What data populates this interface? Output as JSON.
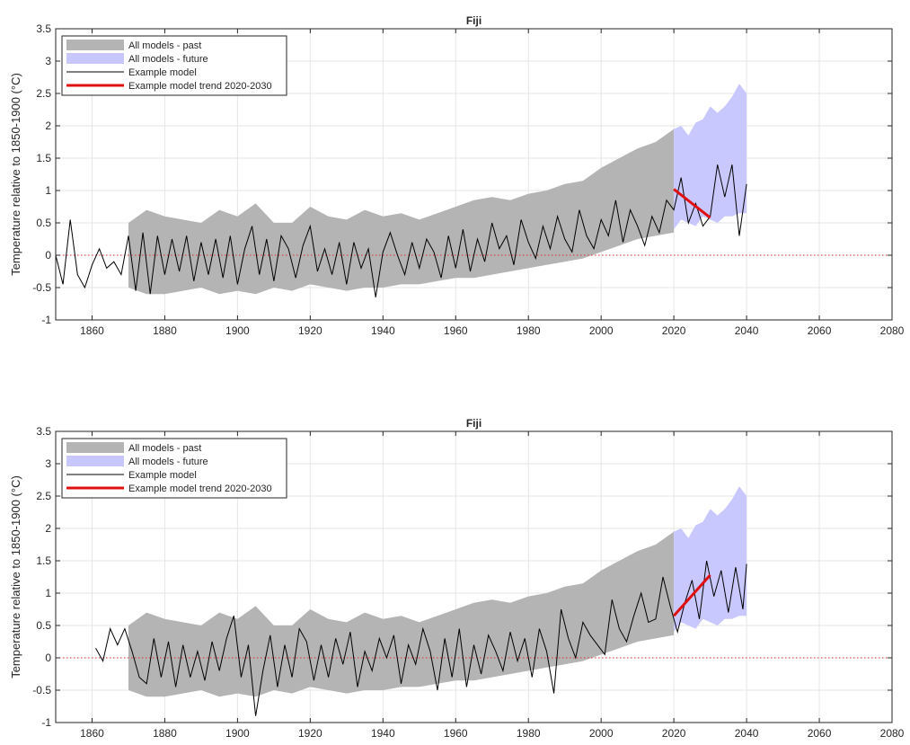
{
  "chart_data": [
    {
      "type": "line",
      "title": "Fiji",
      "xlabel": "",
      "ylabel": "Temperature relative to 1850-1900 (°C)",
      "xlim": [
        1850,
        2080
      ],
      "ylim": [
        -1,
        3.5
      ],
      "xticks": [
        1860,
        1880,
        1900,
        1920,
        1940,
        1960,
        1980,
        2000,
        2020,
        2040,
        2060,
        2080
      ],
      "yticks": [
        -1,
        -0.5,
        0,
        0.5,
        1,
        1.5,
        2,
        2.5,
        3,
        3.5
      ],
      "grid": true,
      "legend_position": "top-left",
      "reference_line": {
        "y": 0,
        "color": "#e03030",
        "style": "dotted"
      },
      "series": [
        {
          "name": "All models - past",
          "kind": "band",
          "color": "#b4b4b4",
          "x": [
            1870,
            1875,
            1880,
            1885,
            1890,
            1895,
            1900,
            1905,
            1910,
            1915,
            1920,
            1925,
            1930,
            1935,
            1940,
            1945,
            1950,
            1955,
            1960,
            1965,
            1970,
            1975,
            1980,
            1985,
            1990,
            1995,
            2000,
            2005,
            2010,
            2015,
            2020
          ],
          "upper": [
            0.5,
            0.7,
            0.6,
            0.55,
            0.5,
            0.7,
            0.6,
            0.8,
            0.5,
            0.5,
            0.75,
            0.6,
            0.55,
            0.7,
            0.6,
            0.65,
            0.55,
            0.65,
            0.75,
            0.85,
            0.9,
            0.85,
            0.95,
            1.0,
            1.1,
            1.15,
            1.35,
            1.5,
            1.65,
            1.75,
            1.95
          ],
          "lower": [
            -0.5,
            -0.6,
            -0.6,
            -0.55,
            -0.5,
            -0.6,
            -0.55,
            -0.6,
            -0.5,
            -0.55,
            -0.45,
            -0.5,
            -0.55,
            -0.5,
            -0.5,
            -0.45,
            -0.45,
            -0.4,
            -0.35,
            -0.35,
            -0.3,
            -0.25,
            -0.2,
            -0.15,
            -0.1,
            -0.05,
            0.05,
            0.15,
            0.25,
            0.3,
            0.35
          ]
        },
        {
          "name": "All models - future",
          "kind": "band",
          "color": "#c8c8ff",
          "x": [
            2020,
            2022,
            2024,
            2026,
            2028,
            2030,
            2032,
            2034,
            2036,
            2038,
            2040
          ],
          "upper": [
            1.95,
            2.0,
            1.85,
            2.05,
            2.1,
            2.3,
            2.2,
            2.3,
            2.45,
            2.65,
            2.5
          ],
          "lower": [
            0.4,
            0.55,
            0.5,
            0.45,
            0.6,
            0.55,
            0.5,
            0.6,
            0.6,
            0.65,
            0.65
          ]
        },
        {
          "name": "Example model",
          "kind": "line",
          "color": "#000000",
          "x": [
            1850,
            1852,
            1854,
            1856,
            1858,
            1860,
            1862,
            1864,
            1866,
            1868,
            1870,
            1872,
            1874,
            1876,
            1878,
            1880,
            1882,
            1884,
            1886,
            1888,
            1890,
            1892,
            1894,
            1896,
            1898,
            1900,
            1902,
            1904,
            1906,
            1908,
            1910,
            1912,
            1914,
            1916,
            1918,
            1920,
            1922,
            1924,
            1926,
            1928,
            1930,
            1932,
            1934,
            1936,
            1938,
            1940,
            1942,
            1944,
            1946,
            1948,
            1950,
            1952,
            1954,
            1956,
            1958,
            1960,
            1962,
            1964,
            1966,
            1968,
            1970,
            1972,
            1974,
            1976,
            1978,
            1980,
            1982,
            1984,
            1986,
            1988,
            1990,
            1992,
            1994,
            1996,
            1998,
            2000,
            2002,
            2004,
            2006,
            2008,
            2010,
            2012,
            2014,
            2016,
            2018,
            2020,
            2022,
            2024,
            2026,
            2028,
            2030,
            2032,
            2034,
            2036,
            2038,
            2040
          ],
          "y": [
            0.0,
            -0.45,
            0.55,
            -0.3,
            -0.5,
            -0.15,
            0.1,
            -0.2,
            -0.1,
            -0.3,
            0.3,
            -0.55,
            0.35,
            -0.6,
            0.3,
            -0.3,
            0.25,
            -0.25,
            0.3,
            -0.4,
            0.2,
            -0.3,
            0.25,
            -0.35,
            0.3,
            -0.45,
            0.1,
            0.45,
            -0.3,
            0.25,
            -0.4,
            0.3,
            0.1,
            -0.35,
            0.15,
            0.45,
            -0.25,
            0.1,
            -0.3,
            0.2,
            -0.45,
            0.2,
            -0.2,
            0.1,
            -0.65,
            0.05,
            0.35,
            0.0,
            -0.3,
            0.2,
            -0.2,
            0.25,
            0.05,
            -0.35,
            0.3,
            -0.2,
            0.4,
            -0.25,
            0.25,
            -0.1,
            0.5,
            0.1,
            0.3,
            -0.15,
            0.55,
            0.2,
            -0.05,
            0.45,
            0.1,
            0.6,
            0.25,
            0.05,
            0.7,
            0.3,
            0.1,
            0.55,
            0.3,
            0.85,
            0.2,
            0.7,
            0.45,
            0.15,
            0.6,
            0.35,
            0.85,
            0.7,
            1.2,
            0.5,
            0.8,
            0.45,
            0.6,
            1.4,
            0.9,
            1.4,
            0.3,
            1.1
          ]
        },
        {
          "name": "Example model trend 2020-2030",
          "kind": "trend",
          "color": "#e01010",
          "x": [
            2020,
            2030
          ],
          "y": [
            1.02,
            0.58
          ]
        }
      ]
    },
    {
      "type": "line",
      "title": "Fiji",
      "xlabel": "",
      "ylabel": "Temperature relative to 1850-1900 (°C)",
      "xlim": [
        1850,
        2080
      ],
      "ylim": [
        -1,
        3.5
      ],
      "xticks": [
        1860,
        1880,
        1900,
        1920,
        1940,
        1960,
        1980,
        2000,
        2020,
        2040,
        2060,
        2080
      ],
      "yticks": [
        -1,
        -0.5,
        0,
        0.5,
        1,
        1.5,
        2,
        2.5,
        3,
        3.5
      ],
      "grid": true,
      "legend_position": "top-left",
      "reference_line": {
        "y": 0,
        "color": "#e03030",
        "style": "dotted"
      },
      "series": [
        {
          "name": "All models - past",
          "kind": "band",
          "color": "#b4b4b4",
          "x": [
            1870,
            1875,
            1880,
            1885,
            1890,
            1895,
            1900,
            1905,
            1910,
            1915,
            1920,
            1925,
            1930,
            1935,
            1940,
            1945,
            1950,
            1955,
            1960,
            1965,
            1970,
            1975,
            1980,
            1985,
            1990,
            1995,
            2000,
            2005,
            2010,
            2015,
            2020
          ],
          "upper": [
            0.5,
            0.7,
            0.6,
            0.55,
            0.5,
            0.7,
            0.6,
            0.8,
            0.5,
            0.5,
            0.75,
            0.6,
            0.55,
            0.7,
            0.6,
            0.65,
            0.55,
            0.65,
            0.75,
            0.85,
            0.9,
            0.85,
            0.95,
            1.0,
            1.1,
            1.15,
            1.35,
            1.5,
            1.65,
            1.75,
            1.95
          ],
          "lower": [
            -0.5,
            -0.6,
            -0.6,
            -0.55,
            -0.5,
            -0.6,
            -0.55,
            -0.6,
            -0.5,
            -0.55,
            -0.45,
            -0.5,
            -0.55,
            -0.5,
            -0.5,
            -0.45,
            -0.45,
            -0.4,
            -0.35,
            -0.35,
            -0.3,
            -0.25,
            -0.2,
            -0.15,
            -0.1,
            -0.05,
            0.05,
            0.15,
            0.25,
            0.3,
            0.35
          ]
        },
        {
          "name": "All models - future",
          "kind": "band",
          "color": "#c8c8ff",
          "x": [
            2020,
            2022,
            2024,
            2026,
            2028,
            2030,
            2032,
            2034,
            2036,
            2038,
            2040
          ],
          "upper": [
            1.95,
            2.0,
            1.85,
            2.05,
            2.1,
            2.3,
            2.2,
            2.3,
            2.45,
            2.65,
            2.5
          ],
          "lower": [
            0.4,
            0.55,
            0.5,
            0.45,
            0.6,
            0.55,
            0.5,
            0.6,
            0.6,
            0.65,
            0.65
          ]
        },
        {
          "name": "Example model",
          "kind": "line",
          "color": "#000000",
          "x": [
            1861,
            1863,
            1865,
            1867,
            1869,
            1871,
            1873,
            1875,
            1877,
            1879,
            1881,
            1883,
            1885,
            1887,
            1889,
            1891,
            1893,
            1895,
            1897,
            1899,
            1901,
            1903,
            1905,
            1907,
            1909,
            1911,
            1913,
            1915,
            1917,
            1919,
            1921,
            1923,
            1925,
            1927,
            1929,
            1931,
            1933,
            1935,
            1937,
            1939,
            1941,
            1943,
            1945,
            1947,
            1949,
            1951,
            1953,
            1955,
            1957,
            1959,
            1961,
            1963,
            1965,
            1967,
            1969,
            1971,
            1973,
            1975,
            1977,
            1979,
            1981,
            1983,
            1985,
            1987,
            1989,
            1991,
            1993,
            1995,
            1997,
            1999,
            2001,
            2003,
            2005,
            2007,
            2009,
            2011,
            2013,
            2015,
            2017,
            2019,
            2021,
            2023,
            2025,
            2027,
            2029,
            2031,
            2033,
            2035,
            2037,
            2039,
            2040
          ],
          "y": [
            0.15,
            -0.05,
            0.45,
            0.2,
            0.45,
            0.1,
            -0.3,
            -0.4,
            0.3,
            -0.3,
            0.25,
            -0.45,
            0.2,
            -0.3,
            0.1,
            -0.35,
            0.25,
            -0.2,
            0.3,
            0.65,
            -0.3,
            0.2,
            -0.9,
            -0.2,
            0.35,
            -0.45,
            0.2,
            -0.3,
            0.45,
            0.25,
            -0.35,
            0.2,
            -0.3,
            0.3,
            -0.1,
            0.4,
            -0.45,
            0.1,
            -0.2,
            0.3,
            0.0,
            0.35,
            -0.4,
            0.2,
            -0.1,
            0.45,
            0.1,
            -0.5,
            0.3,
            -0.3,
            0.45,
            -0.45,
            0.2,
            -0.25,
            0.35,
            0.1,
            -0.2,
            0.4,
            -0.05,
            0.3,
            -0.3,
            0.45,
            0.1,
            -0.55,
            0.75,
            0.3,
            0.0,
            0.55,
            0.35,
            0.2,
            0.05,
            0.9,
            0.45,
            0.25,
            0.65,
            1.0,
            0.55,
            0.6,
            1.25,
            0.8,
            0.4,
            0.85,
            1.2,
            0.6,
            1.5,
            0.95,
            1.35,
            0.7,
            1.4,
            0.75,
            1.45
          ]
        },
        {
          "name": "Example model trend 2020-2030",
          "kind": "trend",
          "color": "#e01010",
          "x": [
            2020,
            2030
          ],
          "y": [
            0.65,
            1.28
          ]
        }
      ]
    }
  ]
}
